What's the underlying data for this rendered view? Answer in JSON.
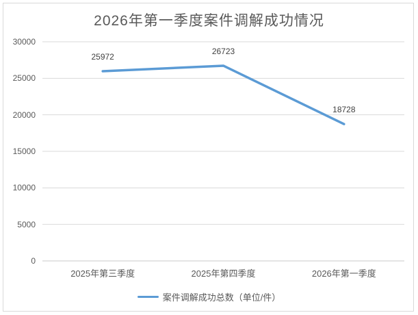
{
  "title": "2026年第一季度案件调解成功情况",
  "legend": {
    "label": "案件调解成功总数（单位/件）"
  },
  "colors": {
    "line": "#5B9BD5",
    "grid": "#D9D9D9",
    "axis": "#C9C9C9",
    "frame": "#D9D9D9",
    "title_text": "#595959",
    "tick_text": "#595959",
    "data_label_text": "#404040"
  },
  "chart_data": {
    "type": "line",
    "title": "2026年第一季度案件调解成功情况",
    "categories": [
      "2025年第三季度",
      "2025年第四季度",
      "2026年第一季度"
    ],
    "series": [
      {
        "name": "案件调解成功总数（单位/件）",
        "values": [
          25972,
          26723,
          18728
        ],
        "color": "#5B9BD5"
      }
    ],
    "data_labels": [
      "25972",
      "26723",
      "18728"
    ],
    "xlabel": "",
    "ylabel": "",
    "ylim": [
      0,
      30000
    ],
    "yticks": [
      0,
      5000,
      10000,
      15000,
      20000,
      25000,
      30000
    ],
    "grid": true,
    "legend_position": "bottom"
  }
}
